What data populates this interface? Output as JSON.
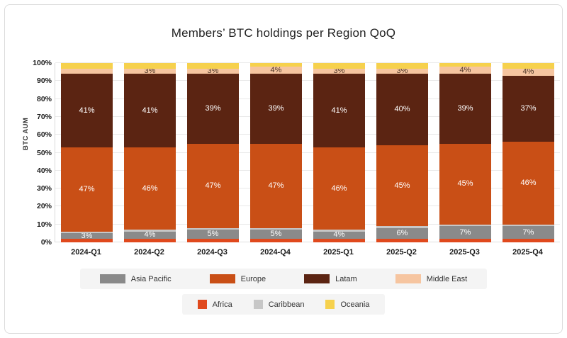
{
  "chart_data": {
    "type": "stacked_bar",
    "title": "Members’ BTC holdings per Region QoQ",
    "ylabel": "BTC AUM",
    "xlabel": "",
    "categories": [
      "2024-Q1",
      "2024-Q2",
      "2024-Q3",
      "2024-Q4",
      "2025-Q1",
      "2025-Q2",
      "2025-Q3",
      "2025-Q4"
    ],
    "y_ticks": [
      "0%",
      "10%",
      "20%",
      "30%",
      "40%",
      "50%",
      "60%",
      "70%",
      "80%",
      "90%",
      "100%"
    ],
    "ylim": [
      0,
      100
    ],
    "grid": "horizontal",
    "units": "percent of BTC AUM",
    "series": [
      {
        "name": "Africa",
        "color": "#e0491d",
        "label_color": "#ffffff",
        "values": [
          2,
          2,
          2,
          2,
          2,
          2,
          2,
          2
        ],
        "labels": [
          null,
          null,
          null,
          null,
          null,
          null,
          null,
          null
        ]
      },
      {
        "name": "Asia Pacific",
        "color": "#8a8a8a",
        "label_color": "#ffffff",
        "values": [
          3,
          4,
          5,
          5,
          4,
          6,
          7,
          7
        ],
        "labels": [
          "3%",
          "4%",
          "5%",
          "5%",
          "4%",
          "6%",
          "7%",
          "7%"
        ]
      },
      {
        "name": "Caribbean",
        "color": "#c7c7c7",
        "label_color": "#555555",
        "values": [
          1,
          1,
          1,
          1,
          1,
          1,
          1,
          1
        ],
        "labels": [
          null,
          null,
          null,
          null,
          null,
          null,
          null,
          null
        ]
      },
      {
        "name": "Europe",
        "color": "#c94f16",
        "label_color": "#ffffff",
        "values": [
          47,
          46,
          47,
          47,
          46,
          45,
          45,
          46
        ],
        "labels": [
          "47%",
          "46%",
          "47%",
          "47%",
          "46%",
          "45%",
          "45%",
          "46%"
        ]
      },
      {
        "name": "Latam",
        "color": "#5b2412",
        "label_color": "#ffffff",
        "values": [
          41,
          41,
          39,
          39,
          41,
          40,
          39,
          37
        ],
        "labels": [
          "41%",
          "41%",
          "39%",
          "39%",
          "41%",
          "40%",
          "39%",
          "37%"
        ]
      },
      {
        "name": "Middle East",
        "color": "#f6c5a0",
        "label_color": "#4d3526",
        "values": [
          3,
          3,
          3,
          4,
          3,
          3,
          4,
          4
        ],
        "labels": [
          null,
          "3%",
          "3%",
          "4%",
          "3%",
          "3%",
          "4%",
          "4%"
        ]
      },
      {
        "name": "Oceania",
        "color": "#f6d14d",
        "label_color": "#4d3526",
        "values": [
          3,
          3,
          3,
          2,
          3,
          3,
          2,
          3
        ],
        "labels": [
          null,
          null,
          null,
          null,
          null,
          null,
          null,
          null
        ]
      }
    ],
    "legend_rows": [
      [
        "Asia Pacific",
        "Europe",
        "Latam",
        "Middle East"
      ],
      [
        "Africa",
        "Caribbean",
        "Oceania"
      ]
    ],
    "legend_position": "bottom"
  }
}
